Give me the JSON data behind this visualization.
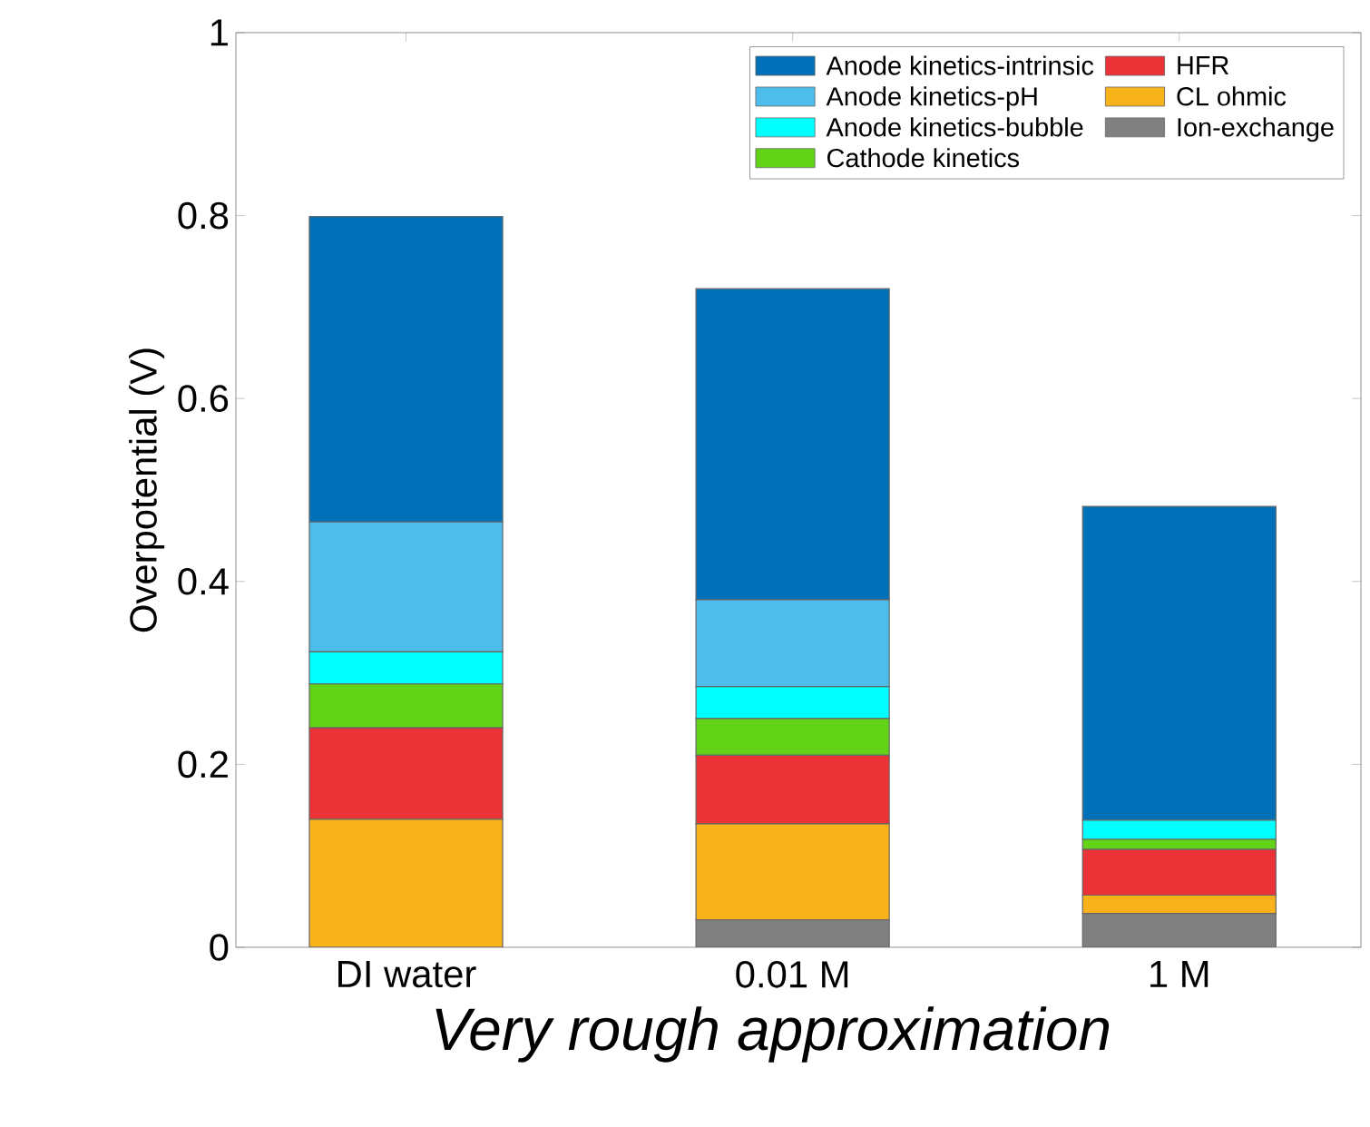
{
  "chart_data": {
    "type": "bar",
    "stacked": true,
    "ylabel": "Overpotential (V)",
    "categories": [
      "DI water",
      "0.01 M",
      "1 M"
    ],
    "series": [
      {
        "name": "Ion-exchange",
        "color": "#808080",
        "values": [
          0,
          0.03,
          0.037
        ]
      },
      {
        "name": "CL ohmic",
        "color": "#f8b31a",
        "values": [
          0.14,
          0.105,
          0.02
        ]
      },
      {
        "name": "HFR",
        "color": "#eb3337",
        "values": [
          0.1,
          0.075,
          0.05
        ]
      },
      {
        "name": "Cathode kinetics",
        "color": "#62d317",
        "values": [
          0.048,
          0.04,
          0.011
        ]
      },
      {
        "name": "Anode kinetics-bubble",
        "color": "#00ffff",
        "values": [
          0.035,
          0.035,
          0.021
        ]
      },
      {
        "name": "Anode kinetics-pH",
        "color": "#4dbeeb",
        "values": [
          0.142,
          0.095,
          0
        ]
      },
      {
        "name": "Anode kinetics-intrinsic",
        "color": "#0070b8",
        "values": [
          0.334,
          0.34,
          0.343
        ]
      }
    ],
    "ylim": [
      0,
      1
    ],
    "yticks": [
      0,
      0.2,
      0.4,
      0.6,
      0.8,
      1
    ],
    "grid": false,
    "legend": "top right",
    "annotations": [
      "Very rough approximation"
    ]
  }
}
